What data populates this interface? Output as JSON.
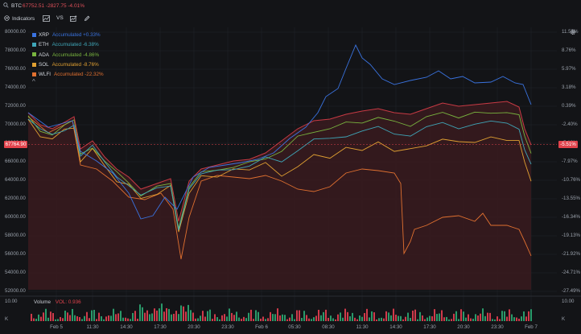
{
  "header": {
    "symbol": "BTC",
    "price_change": "67752.51 -2827.75 -4.01%"
  },
  "toolbar": {
    "indicators_label": "Indicators",
    "vs_label": "VS"
  },
  "legend": [
    {
      "name": "XRP",
      "text": "Accumulated +0.33%",
      "color": "#3a73e0"
    },
    {
      "name": "ETH",
      "text": "Accumulated -6.38%",
      "color": "#3fa6b8"
    },
    {
      "name": "ADA",
      "text": "Accumulated -4.86%",
      "color": "#79b53f"
    },
    {
      "name": "SOL",
      "text": "Accumulated -8.76%",
      "color": "#e0a032"
    },
    {
      "name": "WLFI",
      "text": "Accumulated -22.32%",
      "color": "#e07030"
    }
  ],
  "left_axis": [
    "80000.00",
    "78000.00",
    "76000.00",
    "74000.00",
    "72000.00",
    "70000.00",
    "68000.00",
    "66000.00",
    "64000.00",
    "62000.00",
    "60000.00",
    "58000.00",
    "56000.00",
    "54000.00",
    "52000.00"
  ],
  "right_axis": [
    "11.55%",
    "8.76%",
    "5.97%",
    "3.18%",
    "0.39%",
    "-2.40%",
    "-5.18%",
    "-7.97%",
    "-10.76%",
    "-13.55%",
    "-16.34%",
    "-19.13%",
    "-21.92%",
    "-24.71%",
    "-27.49%"
  ],
  "current_price": "67764.90",
  "current_pct": "-5.51%",
  "x_labels": [
    "Feb 5",
    "11:30",
    "14:30",
    "17:30",
    "20:30",
    "23:30",
    "Feb 6",
    "05:30",
    "08:30",
    "11:30",
    "14:30",
    "17:30",
    "20:30",
    "23:30",
    "Feb 7"
  ],
  "volume": {
    "label": "Volume",
    "value": "VOL: 0.936",
    "axis_top": "10.00",
    "axis_bottom": "K"
  },
  "volume_right": {
    "top": "10.00",
    "bottom": "K"
  },
  "colors": {
    "btc_line": "#c83a44",
    "btc_fill": "#3a1a1f",
    "accent_red": "#e2434c",
    "grid": "#23252b"
  }
}
